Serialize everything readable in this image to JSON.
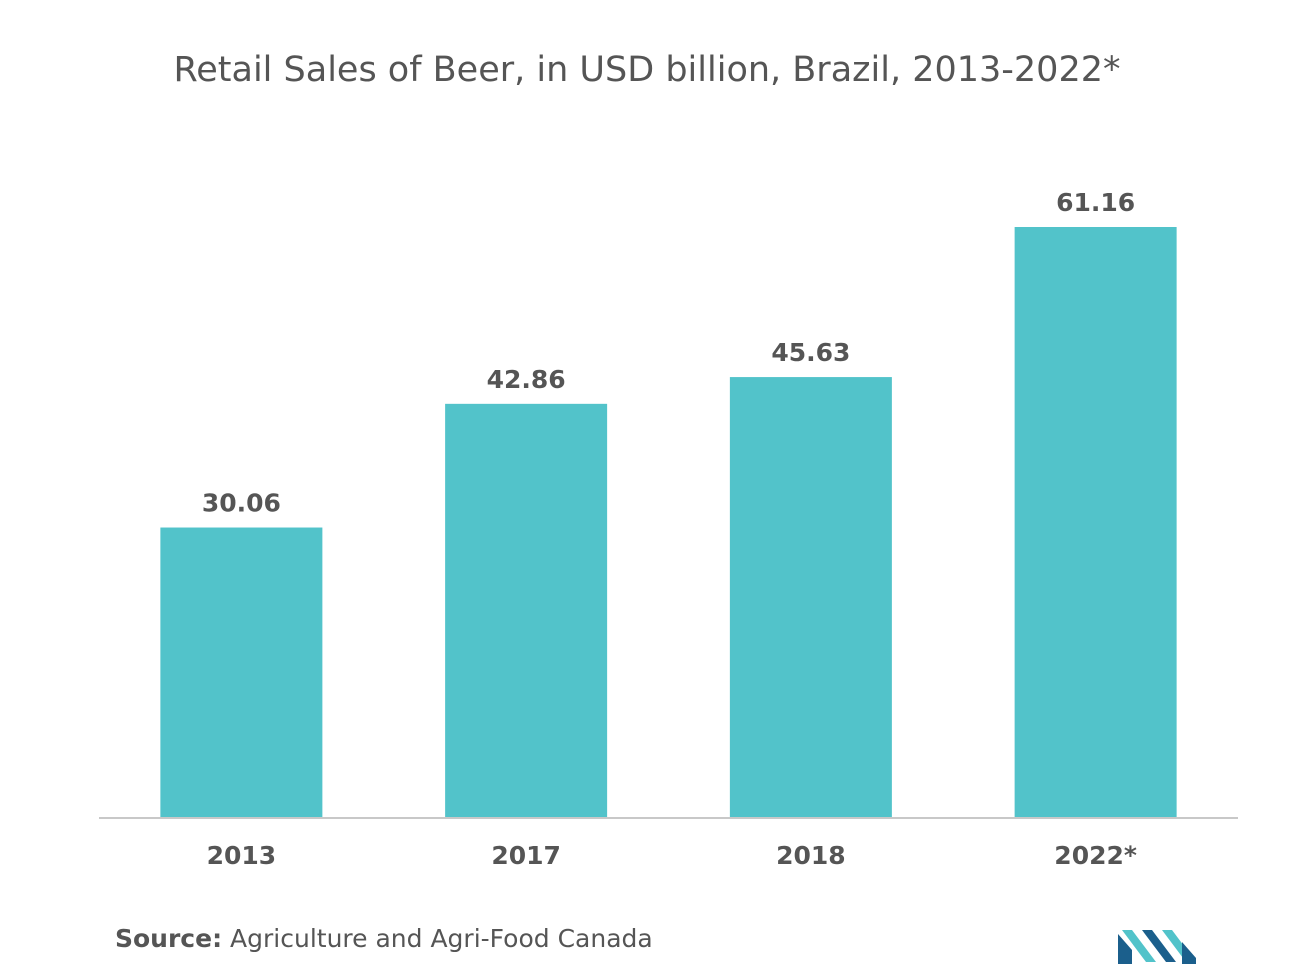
{
  "chart_data": {
    "type": "bar",
    "title": "Retail Sales of Beer, in USD billion, Brazil, 2013-2022*",
    "categories": [
      "2013",
      "2017",
      "2018",
      "2022*"
    ],
    "values": [
      30.06,
      42.86,
      45.63,
      61.16
    ],
    "value_labels": [
      "30.06",
      "42.86",
      "45.63",
      "61.16"
    ],
    "xlabel": "",
    "ylabel": "",
    "ylim": [
      0,
      61.16
    ],
    "grid": false,
    "legend": "none",
    "bar_color": "#52c3ca"
  },
  "source": {
    "key": "Source:",
    "text": " Agriculture and Agri-Food Canada"
  },
  "logo": {
    "icon": "mordor-intelligence-logo-icon",
    "colors": [
      "#1b5f8c",
      "#52c3ca"
    ]
  }
}
